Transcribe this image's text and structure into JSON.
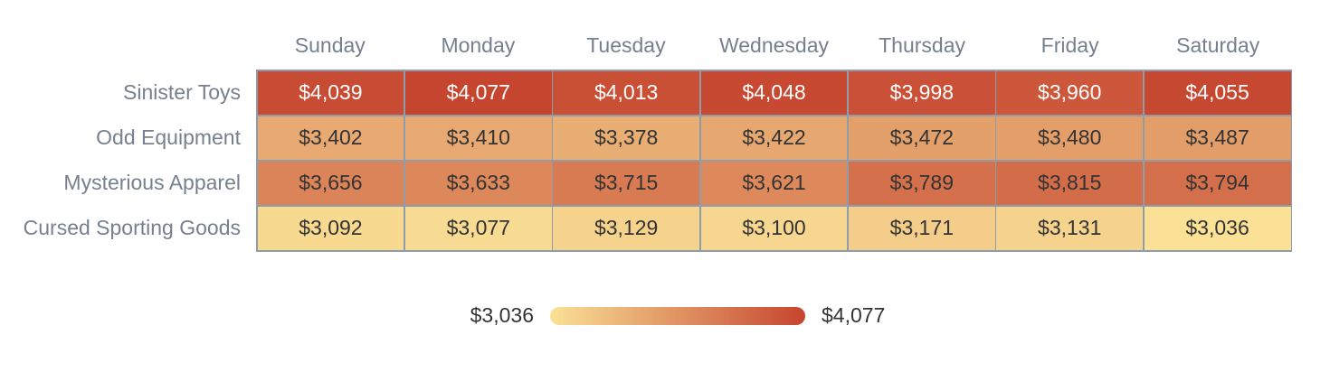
{
  "chart_data": {
    "type": "heatmap",
    "columns": [
      "Sunday",
      "Monday",
      "Tuesday",
      "Wednesday",
      "Thursday",
      "Friday",
      "Saturday"
    ],
    "rows": [
      "Sinister Toys",
      "Odd Equipment",
      "Mysterious Apparel",
      "Cursed Sporting Goods"
    ],
    "values": [
      [
        4039,
        4077,
        4013,
        4048,
        3998,
        3960,
        4055
      ],
      [
        3402,
        3410,
        3378,
        3422,
        3472,
        3480,
        3487
      ],
      [
        3656,
        3633,
        3715,
        3621,
        3789,
        3815,
        3794
      ],
      [
        3092,
        3077,
        3129,
        3100,
        3171,
        3131,
        3036
      ]
    ],
    "value_prefix": "$",
    "min_value": 3036,
    "max_value": 4077,
    "legend": {
      "min_label": "$3,036",
      "max_label": "$4,077"
    },
    "colors": {
      "scale_min": "#FAE196",
      "scale_max": "#C6452F",
      "grid_border": "#8E9DAB",
      "axis_text": "#76808E",
      "cell_text_dark": "#333333",
      "cell_text_light": "#FFFFFF",
      "legend_text": "#333333",
      "background": "#FFFFFF"
    }
  }
}
